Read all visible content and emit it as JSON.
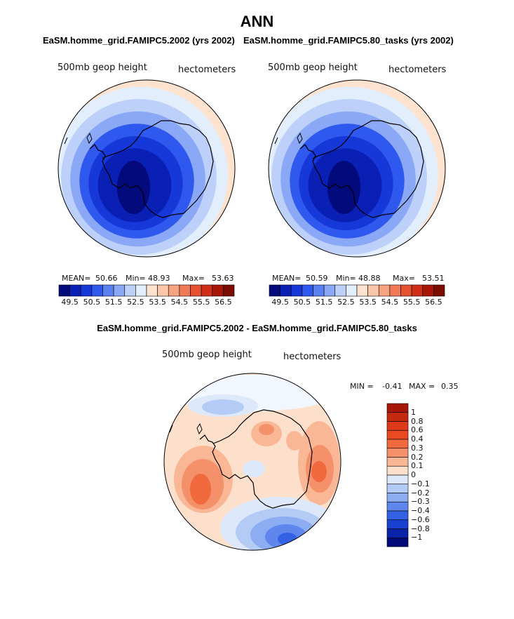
{
  "page": {
    "title": "ANN"
  },
  "chart_data": [
    {
      "type": "heatmap",
      "projection": "south polar stereographic",
      "subtitle": "EaSM.homme_grid.FAMIPC5.2002 (yrs 2002)",
      "left_label": "500mb geop height",
      "right_label": "hectometers",
      "stats": {
        "mean_label": "MEAN=",
        "mean": "50.66",
        "min_label": "Min=",
        "min": "48.93",
        "max_label": "Max=",
        "max": "53.63"
      },
      "legend_levels": [
        "49.5",
        "50.5",
        "51.5",
        "52.5",
        "53.5",
        "54.5",
        "55.5",
        "56.5"
      ],
      "colors": [
        "#020a7c",
        "#0a20b4",
        "#1638d8",
        "#2f58ee",
        "#5a80f2",
        "#8aa8f5",
        "#bcd0f9",
        "#e3eefc",
        "#fde3cf",
        "#fbc7a8",
        "#f7a37f",
        "#f07a55",
        "#e45230",
        "#cf2f16",
        "#a81608",
        "#7a0c02"
      ],
      "map_bands": [
        53.3,
        52.8,
        52.2,
        51.5,
        50.9,
        50.3,
        49.7,
        49.2
      ]
    },
    {
      "type": "heatmap",
      "projection": "south polar stereographic",
      "subtitle": "EaSM.homme_grid.FAMIPC5.80_tasks (yrs 2002)",
      "left_label": "500mb geop height",
      "right_label": "hectometers",
      "stats": {
        "mean_label": "MEAN=",
        "mean": "50.59",
        "min_label": "Min=",
        "min": "48.88",
        "max_label": "Max=",
        "max": "53.51"
      },
      "legend_levels": [
        "49.5",
        "50.5",
        "51.5",
        "52.5",
        "53.5",
        "54.5",
        "55.5",
        "56.5"
      ],
      "colors": [
        "#020a7c",
        "#0a20b4",
        "#1638d8",
        "#2f58ee",
        "#5a80f2",
        "#8aa8f5",
        "#bcd0f9",
        "#e3eefc",
        "#fde3cf",
        "#fbc7a8",
        "#f7a37f",
        "#f07a55",
        "#e45230",
        "#cf2f16",
        "#a81608",
        "#7a0c02"
      ],
      "map_bands": [
        53.3,
        52.8,
        52.2,
        51.5,
        50.9,
        50.3,
        49.7,
        49.1
      ]
    },
    {
      "type": "heatmap",
      "projection": "south polar stereographic",
      "subtitle": "EaSM.homme_grid.FAMIPC5.2002 - EaSM.homme_grid.FAMIPC5.80_tasks",
      "left_label": "500mb geop height",
      "right_label": "hectometers",
      "range": {
        "min_label": "MIN =",
        "min": "-0.41",
        "max_label": "MAX =",
        "max": "0.35"
      },
      "legend_levels": [
        "1",
        "0.8",
        "0.6",
        "0.4",
        "0.3",
        "0.2",
        "0.1",
        "0",
        "−0.1",
        "−0.2",
        "−0.3",
        "−0.4",
        "−0.6",
        "−0.8",
        "−1"
      ],
      "colors": [
        "#a81608",
        "#c42a10",
        "#dc3a18",
        "#ea4a22",
        "#f06a3e",
        "#f4906a",
        "#f9b795",
        "#fde0cc",
        "#dde9fb",
        "#b4cbf6",
        "#8cadf2",
        "#5f86ec",
        "#3462e4",
        "#1a40d0",
        "#0a24a8",
        "#000a78"
      ]
    }
  ]
}
